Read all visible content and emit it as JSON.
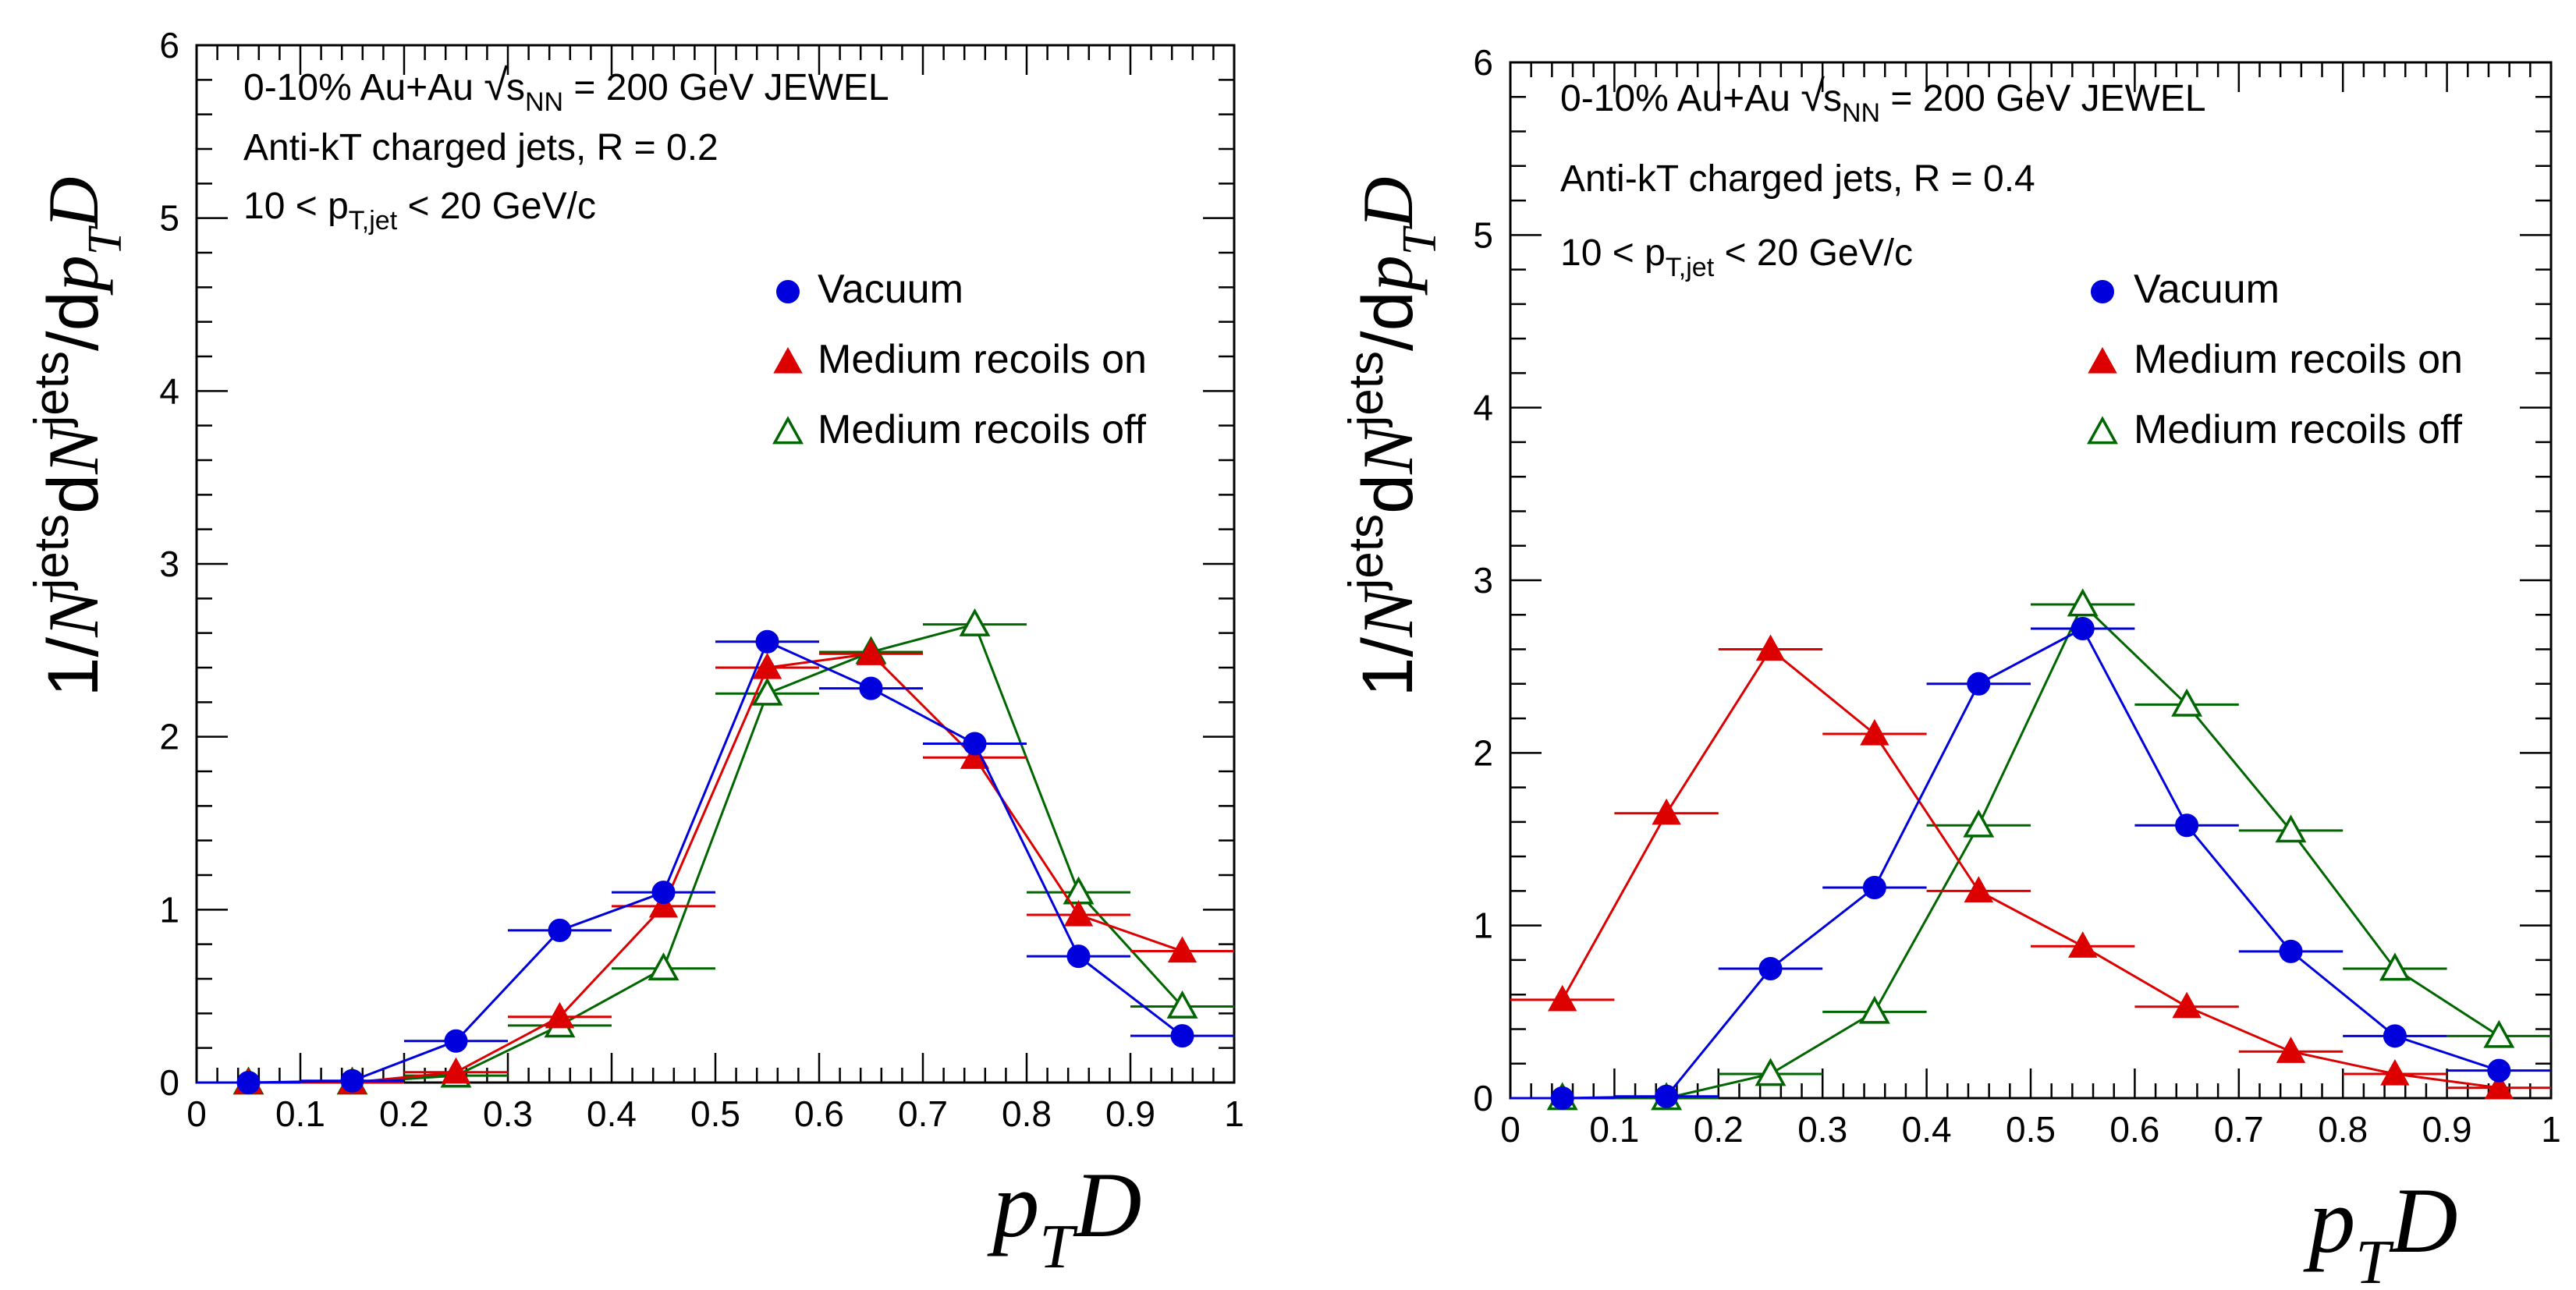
{
  "chart_data": [
    {
      "type": "line",
      "ylabel": {
        "prefix": "1/",
        "N1": "N",
        "sup1": "jets",
        "mid": "d",
        "N2": "N",
        "sup2": "jets",
        "slash": "/d",
        "p": "p",
        "T": "T",
        "D": "D"
      },
      "xlabel": {
        "p": "p",
        "T": "T",
        "D": "D"
      },
      "xlim": [
        0,
        1
      ],
      "ylim": [
        0,
        6
      ],
      "xticks": [
        "0",
        "0.1",
        "0.2",
        "0.3",
        "0.4",
        "0.5",
        "0.6",
        "0.7",
        "0.8",
        "0.9",
        "1"
      ],
      "yticks": [
        "0",
        "1",
        "2",
        "3",
        "4",
        "5",
        "6"
      ],
      "annotations": {
        "line1_a": "0-10% Au+Au ",
        "line1_sqrt_s": "s",
        "line1_sub": "NN",
        "line1_b": " = 200 GeV  JEWEL",
        "line2": "Anti-kT charged jets, R = 0.2",
        "line3_a": "10 < p",
        "line3_sub": "T,jet",
        "line3_b": " < 20 GeV/c"
      },
      "legend_position": "top-right",
      "x": [
        0.05,
        0.15,
        0.25,
        0.35,
        0.45,
        0.55,
        0.65,
        0.75,
        0.85,
        0.95
      ],
      "series": [
        {
          "name": "Vacuum",
          "color": "#0000dd",
          "marker": "circle",
          "values": [
            0,
            0.01,
            0.24,
            0.88,
            1.1,
            2.55,
            2.28,
            1.96,
            0.73,
            0.27
          ]
        },
        {
          "name": "Medium recoils on",
          "color": "#dd0000",
          "marker": "triangle",
          "values": [
            0,
            0.0,
            0.06,
            0.38,
            1.02,
            2.4,
            2.48,
            1.88,
            0.97,
            0.76
          ]
        },
        {
          "name": "Medium recoils off",
          "color": "#006600",
          "marker": "triangle-open",
          "values": [
            0,
            0.0,
            0.04,
            0.33,
            0.66,
            2.25,
            2.49,
            2.65,
            1.1,
            0.44
          ]
        }
      ]
    },
    {
      "type": "line",
      "ylabel": {
        "prefix": "1/",
        "N1": "N",
        "sup1": "jets",
        "mid": "d",
        "N2": "N",
        "sup2": "jets",
        "slash": "/d",
        "p": "p",
        "T": "T",
        "D": "D"
      },
      "xlabel": {
        "p": "p",
        "T": "T",
        "D": "D"
      },
      "xlim": [
        0,
        1
      ],
      "ylim": [
        0,
        6
      ],
      "xticks": [
        "0",
        "0.1",
        "0.2",
        "0.3",
        "0.4",
        "0.5",
        "0.6",
        "0.7",
        "0.8",
        "0.9",
        "1"
      ],
      "yticks": [
        "0",
        "1",
        "2",
        "3",
        "4",
        "5",
        "6"
      ],
      "annotations": {
        "line1_a": "0-10% Au+Au ",
        "line1_sqrt_s": "s",
        "line1_sub": "NN",
        "line1_b": " = 200 GeV  JEWEL",
        "line2": "Anti-kT charged jets, R = 0.4",
        "line3_a": "10 < p",
        "line3_sub": "T,jet",
        "line3_b": " < 20 GeV/c"
      },
      "legend_position": "top-right",
      "x": [
        0.05,
        0.15,
        0.25,
        0.35,
        0.45,
        0.55,
        0.65,
        0.75,
        0.85,
        0.95
      ],
      "series": [
        {
          "name": "Vacuum",
          "color": "#0000dd",
          "marker": "circle",
          "values": [
            0,
            0.01,
            0.75,
            1.22,
            2.4,
            2.72,
            1.58,
            0.85,
            0.36,
            0.16
          ]
        },
        {
          "name": "Medium recoils on",
          "color": "#dd0000",
          "marker": "triangle",
          "values": [
            0.57,
            1.65,
            2.6,
            2.11,
            1.2,
            0.88,
            0.53,
            0.27,
            0.14,
            0.06
          ]
        },
        {
          "name": "Medium recoils off",
          "color": "#006600",
          "marker": "triangle-open",
          "values": [
            0,
            0.0,
            0.14,
            0.5,
            1.58,
            2.86,
            2.28,
            1.55,
            0.75,
            0.36
          ]
        }
      ]
    }
  ]
}
